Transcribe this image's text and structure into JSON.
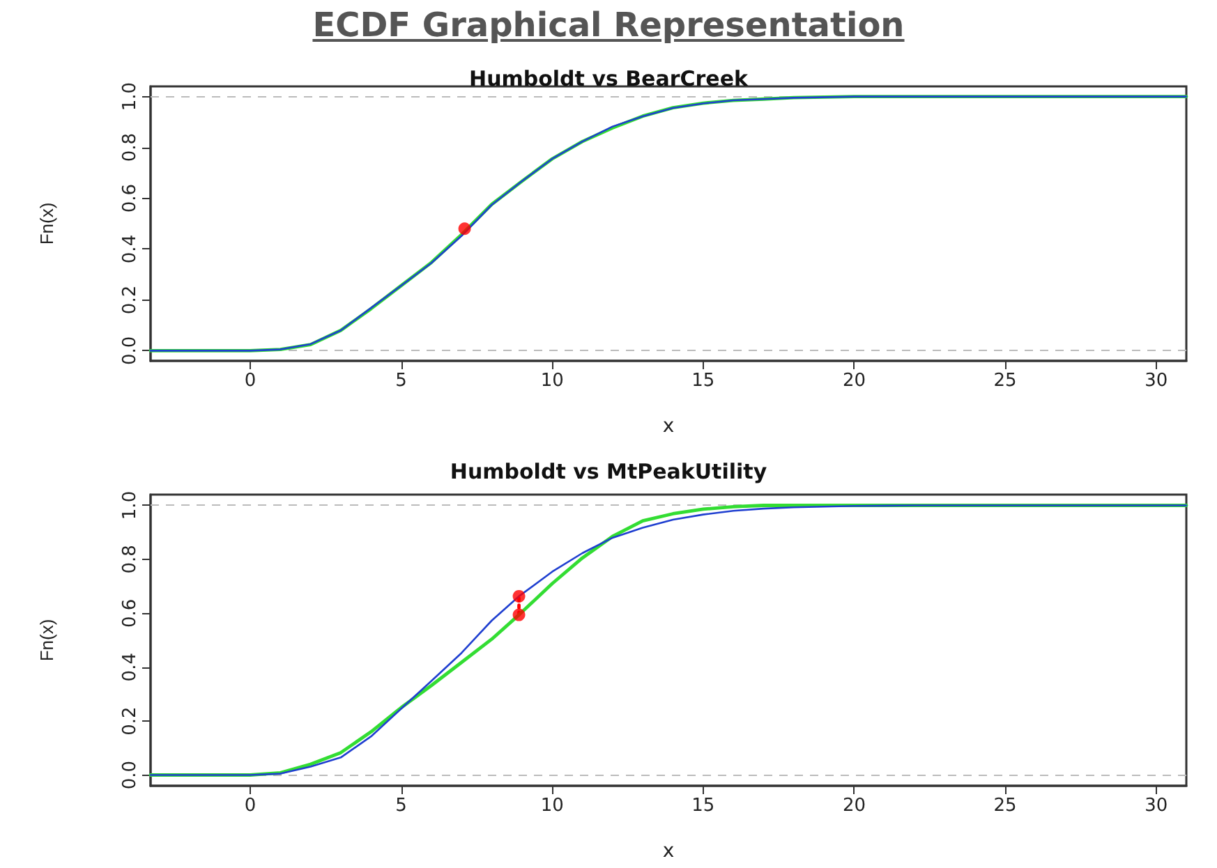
{
  "chart_data": [
    {
      "type": "line",
      "title": "ECDF Graphical Representation",
      "subtitle": "Humboldt vs BearCreek",
      "xlabel": "x",
      "ylabel": "Fn(x)",
      "xlim": [
        -3.3,
        31
      ],
      "xticks": [
        0,
        5,
        10,
        15,
        20,
        25,
        30
      ],
      "ylim": [
        -0.04,
        1.04
      ],
      "yticks": [
        {
          "value": 0,
          "label": "0.0"
        },
        {
          "value": 0.2,
          "label": "0.2"
        },
        {
          "value": 0.4,
          "label": "0.4"
        },
        {
          "value": 0.6,
          "label": "0.6"
        },
        {
          "value": 0.8,
          "label": "0.8"
        },
        {
          "value": 1,
          "label": "1.0"
        }
      ],
      "ref_lines": [
        {
          "axis": "y",
          "value": 0,
          "color": "#bbbbbb",
          "line_style": "dashed"
        },
        {
          "axis": "y",
          "value": 1,
          "color": "#bbbbbb",
          "line_style": "dashed"
        }
      ],
      "series": [
        {
          "color": "#1f3fd0",
          "line_style": "solid",
          "x": [
            -3.3,
            0,
            1,
            2,
            3,
            4,
            5,
            6,
            7,
            8,
            9,
            10,
            11,
            12,
            13,
            14,
            15,
            16,
            17,
            18,
            20,
            31
          ],
          "values": [
            0,
            0,
            0.005,
            0.026,
            0.08,
            0.168,
            0.256,
            0.345,
            0.452,
            0.574,
            0.667,
            0.755,
            0.823,
            0.882,
            0.922,
            0.955,
            0.973,
            0.985,
            0.99,
            0.995,
            1,
            1
          ]
        },
        {
          "color": "#33dd33",
          "line_style": "solid",
          "x": [
            -3.3,
            0,
            1,
            2,
            3,
            4,
            5,
            6,
            7,
            8,
            9,
            10,
            11,
            12,
            13,
            14,
            15,
            16,
            17,
            18,
            20,
            31
          ],
          "values": [
            0,
            0,
            0.005,
            0.024,
            0.08,
            0.165,
            0.256,
            0.347,
            0.457,
            0.576,
            0.667,
            0.755,
            0.823,
            0.877,
            0.923,
            0.956,
            0.974,
            0.985,
            0.99,
            0.996,
            1,
            1
          ]
        },
        {
          "type": "scatter",
          "color": "#ff0000",
          "marker": "circle",
          "x": [
            7.1
          ],
          "values": [
            0.48
          ]
        }
      ]
    },
    {
      "type": "line",
      "title": "Humboldt vs MtPeakUtility",
      "xlabel": "x",
      "ylabel": "Fn(x)",
      "xlim": [
        -3.3,
        31
      ],
      "xticks": [
        0,
        5,
        10,
        15,
        20,
        25,
        30
      ],
      "ylim": [
        -0.04,
        1.04
      ],
      "yticks": [
        {
          "value": 0,
          "label": "0.0"
        },
        {
          "value": 0.2,
          "label": "0.2"
        },
        {
          "value": 0.4,
          "label": "0.4"
        },
        {
          "value": 0.6,
          "label": "0.6"
        },
        {
          "value": 0.8,
          "label": "0.8"
        },
        {
          "value": 1,
          "label": "1.0"
        }
      ],
      "ref_lines": [
        {
          "axis": "y",
          "value": 0,
          "color": "#bbbbbb",
          "line_style": "dashed"
        },
        {
          "axis": "y",
          "value": 1,
          "color": "#bbbbbb",
          "line_style": "dashed"
        }
      ],
      "series": [
        {
          "color": "#1f3fd0",
          "line_style": "solid",
          "x": [
            -3.3,
            0,
            1,
            2,
            3,
            4,
            5,
            6,
            7,
            7.5,
            8,
            8.9,
            10,
            11,
            12,
            13,
            14,
            15,
            16,
            17,
            18,
            20,
            22,
            31
          ],
          "values": [
            0,
            0,
            0.005,
            0.031,
            0.065,
            0.143,
            0.246,
            0.349,
            0.453,
            0.513,
            0.573,
            0.663,
            0.754,
            0.823,
            0.88,
            0.917,
            0.947,
            0.966,
            0.98,
            0.988,
            0.993,
            0.998,
            1,
            1
          ]
        },
        {
          "color": "#33dd33",
          "line_style": "solid",
          "x": [
            -3.3,
            0,
            1,
            2,
            3,
            4,
            5,
            6,
            7,
            8,
            8.9,
            10,
            11,
            12,
            13,
            14,
            15,
            16,
            17,
            31
          ],
          "values": [
            0,
            0,
            0.008,
            0.04,
            0.083,
            0.16,
            0.25,
            0.332,
            0.418,
            0.504,
            0.594,
            0.71,
            0.805,
            0.885,
            0.943,
            0.969,
            0.986,
            0.995,
            1,
            1
          ]
        },
        {
          "type": "line",
          "color": "#ff0000",
          "line_style": "dotted",
          "x": [
            8.9,
            8.9
          ],
          "values": [
            0.594,
            0.663
          ]
        },
        {
          "type": "scatter",
          "color": "#ff0000",
          "marker": "circle",
          "x": [
            8.9,
            8.9
          ],
          "values": [
            0.663,
            0.594
          ]
        }
      ]
    }
  ]
}
